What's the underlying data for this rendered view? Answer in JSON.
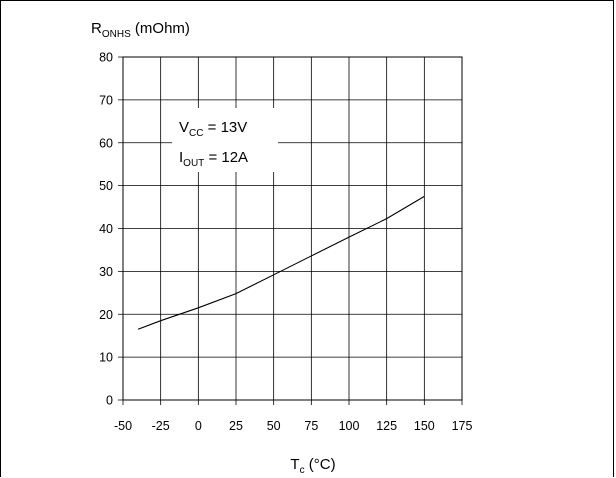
{
  "chart_data": {
    "type": "line",
    "ylabel": {
      "main": "R",
      "sub": "ONHS",
      "rest": " (mOhm)"
    },
    "xlabel": {
      "main": "T",
      "sub": "c",
      "rest": " (°C)"
    },
    "xlim": [
      -50,
      175
    ],
    "ylim": [
      0,
      80
    ],
    "xticks": [
      -50,
      -25,
      0,
      25,
      50,
      75,
      100,
      125,
      150,
      175
    ],
    "yticks": [
      0,
      10,
      20,
      30,
      40,
      50,
      60,
      70,
      80
    ],
    "grid": true,
    "annotations": [
      {
        "main": "V",
        "sub": "CC",
        "rest": " = 13V"
      },
      {
        "main": "I",
        "sub": "OUT",
        "rest": " = 12A"
      }
    ],
    "series": [
      {
        "x": [
          -40,
          -25,
          0,
          25,
          50,
          75,
          100,
          125,
          150
        ],
        "y": [
          16.5,
          18.5,
          21.5,
          24.8,
          29.2,
          33.6,
          38.0,
          42.3,
          47.5
        ]
      }
    ]
  }
}
